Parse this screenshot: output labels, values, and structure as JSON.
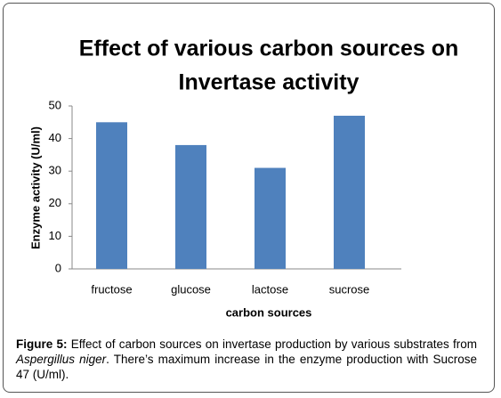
{
  "chart_data": {
    "type": "bar",
    "title": [
      "Effect of various carbon sources on",
      "Invertase activity"
    ],
    "x_label": "carbon sources",
    "y_label": "Enzyme activity (U/ml)",
    "categories": [
      "fructose",
      "glucose",
      "lactose",
      "sucrose"
    ],
    "values": [
      45,
      38,
      31,
      47
    ],
    "color": "#4f81bd",
    "ylim": [
      0,
      50
    ],
    "yticks": [
      0,
      10,
      20,
      30,
      40,
      50
    ],
    "grid": false
  },
  "caption": {
    "label": "Figure 5:",
    "text": "Effect of carbon sources on invertase production by various substrates from",
    "species": "Aspergillus niger",
    "text_after": ". There’s maximum increase in the enzyme production with Sucrose 47 (U/ml)."
  }
}
